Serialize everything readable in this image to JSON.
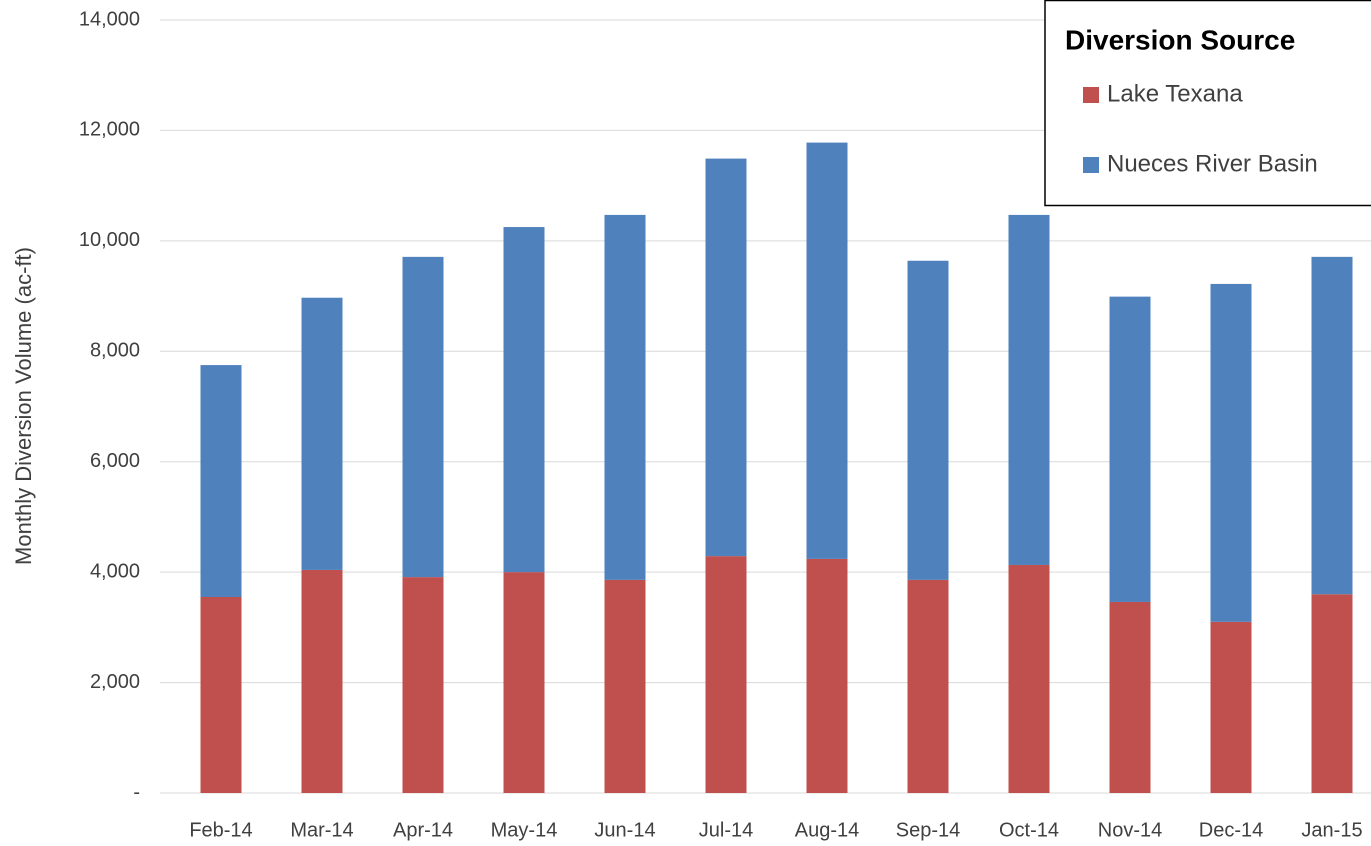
{
  "chart_data": {
    "type": "stacked_bar",
    "y_label": "Monthly Diversion Volume (ac-ft)",
    "legend_title": "Diversion Source",
    "legend": "top-right",
    "grid": true,
    "categories": [
      "Feb-14",
      "Mar-14",
      "Apr-14",
      "May-14",
      "Jun-14",
      "Jul-14",
      "Aug-14",
      "Sep-14",
      "Oct-14",
      "Nov-14",
      "Dec-14",
      "Jan-15"
    ],
    "series": [
      {
        "name": "Lake Texana",
        "color": "#c0504d",
        "values": [
          3550,
          4040,
          3910,
          4000,
          3860,
          4290,
          4240,
          3860,
          4130,
          3460,
          3100,
          3600
        ]
      },
      {
        "name": "Nueces River Basin",
        "color": "#4f81bd",
        "values": [
          4200,
          4930,
          5800,
          6250,
          6610,
          7200,
          7540,
          5780,
          6340,
          5530,
          6120,
          6110
        ]
      }
    ],
    "ylim": [
      0,
      14000
    ],
    "yticks": [
      {
        "value": 0,
        "label": "-"
      },
      {
        "value": 2000,
        "label": "2,000"
      },
      {
        "value": 4000,
        "label": "4,000"
      },
      {
        "value": 6000,
        "label": "6,000"
      },
      {
        "value": 8000,
        "label": "8,000"
      },
      {
        "value": 10000,
        "label": "10,000"
      },
      {
        "value": 12000,
        "label": "12,000"
      },
      {
        "value": 14000,
        "label": "14,000"
      }
    ]
  }
}
